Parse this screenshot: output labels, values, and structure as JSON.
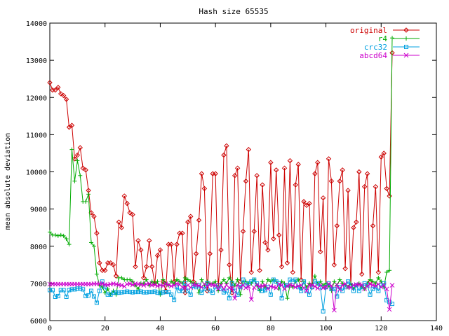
{
  "chart_data": {
    "type": "line",
    "title": "Hash size 65535",
    "xlabel": "",
    "ylabel": "mean absolute deviation",
    "xlim": [
      0,
      140
    ],
    "ylim": [
      6000,
      14000
    ],
    "xticks": [
      0,
      20,
      40,
      60,
      80,
      100,
      120,
      140
    ],
    "yticks": [
      6000,
      7000,
      8000,
      9000,
      10000,
      11000,
      12000,
      13000,
      14000
    ],
    "legend_position": "top-right",
    "series": [
      {
        "name": "original",
        "color": "#cc0000",
        "marker": "diamond",
        "x": [
          0,
          1,
          2,
          3,
          4,
          5,
          6,
          7,
          8,
          9,
          10,
          11,
          12,
          13,
          14,
          15,
          16,
          17,
          18,
          19,
          20,
          21,
          22,
          23,
          24,
          25,
          26,
          27,
          28,
          29,
          30,
          31,
          32,
          33,
          34,
          35,
          36,
          37,
          38,
          39,
          40,
          41,
          42,
          43,
          44,
          45,
          46,
          47,
          48,
          49,
          50,
          51,
          52,
          53,
          54,
          55,
          56,
          57,
          58,
          59,
          60,
          61,
          62,
          63,
          64,
          65,
          66,
          67,
          68,
          69,
          70,
          71,
          72,
          73,
          74,
          75,
          76,
          77,
          78,
          79,
          80,
          81,
          82,
          83,
          84,
          85,
          86,
          87,
          88,
          89,
          90,
          91,
          92,
          93,
          94,
          95,
          96,
          97,
          98,
          99,
          100,
          101,
          102,
          103,
          104,
          105,
          106,
          107,
          108,
          109,
          110,
          111,
          112,
          113,
          114,
          115,
          116,
          117,
          118,
          119,
          120,
          121,
          122,
          123,
          124
        ],
        "y": [
          12400,
          12200,
          12200,
          12270,
          12100,
          12050,
          11950,
          11200,
          11250,
          10350,
          10450,
          10650,
          10100,
          10050,
          9500,
          8900,
          8800,
          8350,
          7550,
          7350,
          7350,
          7550,
          7550,
          7500,
          7200,
          8650,
          8500,
          9350,
          9150,
          8900,
          8850,
          7450,
          8150,
          7900,
          7150,
          7450,
          8150,
          7450,
          7000,
          7750,
          7900,
          7050,
          6800,
          8050,
          8050,
          7050,
          8050,
          8350,
          8350,
          6750,
          8650,
          8800,
          7050,
          7800,
          8700,
          9950,
          9550,
          6800,
          7800,
          9950,
          9950,
          6900,
          7900,
          10450,
          10700,
          7500,
          6750,
          9900,
          10100,
          7050,
          8400,
          9750,
          10600,
          7300,
          8400,
          9900,
          7350,
          9650,
          8100,
          7900,
          10250,
          8200,
          10050,
          8300,
          7450,
          10100,
          7550,
          10300,
          7300,
          9650,
          10200,
          7100,
          9200,
          9100,
          9150,
          6900,
          9950,
          10250,
          7850,
          9300,
          6900,
          10350,
          9750,
          7500,
          8550,
          9750,
          10050,
          7400,
          9500,
          6950,
          8500,
          8650,
          10000,
          7250,
          9600,
          9950,
          7050,
          8550,
          9600,
          7300,
          10400,
          10500,
          9550,
          9350,
          13200
        ]
      },
      {
        "name": "r4",
        "color": "#00aa00",
        "marker": "plus",
        "x": [
          0,
          1,
          2,
          3,
          4,
          5,
          6,
          7,
          8,
          9,
          10,
          11,
          12,
          13,
          14,
          15,
          16,
          17,
          18,
          19,
          20,
          21,
          22,
          23,
          24,
          25,
          26,
          27,
          28,
          29,
          30,
          31,
          32,
          33,
          34,
          35,
          36,
          37,
          38,
          39,
          40,
          41,
          42,
          43,
          44,
          45,
          46,
          47,
          48,
          49,
          50,
          51,
          52,
          53,
          54,
          55,
          56,
          57,
          58,
          59,
          60,
          61,
          62,
          63,
          64,
          65,
          66,
          67,
          68,
          69,
          70,
          71,
          72,
          73,
          74,
          75,
          76,
          77,
          78,
          79,
          80,
          81,
          82,
          83,
          84,
          85,
          86,
          87,
          88,
          89,
          90,
          91,
          92,
          93,
          94,
          95,
          96,
          97,
          98,
          99,
          100,
          101,
          102,
          103,
          104,
          105,
          106,
          107,
          108,
          109,
          110,
          111,
          112,
          113,
          114,
          115,
          116,
          117,
          118,
          119,
          120,
          121,
          122,
          123,
          124
        ],
        "y": [
          8380,
          8300,
          8300,
          8280,
          8300,
          8280,
          8200,
          8050,
          10600,
          9750,
          10300,
          9900,
          9200,
          9200,
          9400,
          8100,
          8000,
          7250,
          6950,
          6900,
          6750,
          6850,
          6700,
          6800,
          6700,
          7150,
          7150,
          7100,
          7100,
          7100,
          7050,
          6950,
          6850,
          7000,
          7000,
          7100,
          6950,
          7050,
          7000,
          7050,
          6700,
          7100,
          7000,
          6950,
          7050,
          7000,
          7100,
          7050,
          7000,
          7150,
          7100,
          7050,
          7000,
          7000,
          6750,
          7100,
          6950,
          7050,
          7000,
          7000,
          7050,
          6800,
          7000,
          7100,
          7000,
          7150,
          7050,
          6950,
          7100,
          6700,
          7050,
          7050,
          7000,
          7000,
          7100,
          6950,
          6800,
          7050,
          6900,
          7100,
          7050,
          7100,
          7050,
          6850,
          7050,
          7000,
          6600,
          6950,
          6900,
          7050,
          7100,
          6850,
          7050,
          6900,
          7000,
          6950,
          7200,
          7000,
          7050,
          6950,
          7000,
          6950,
          6800,
          7050,
          6950,
          7100,
          7000,
          6950,
          6900,
          7000,
          6850,
          6950,
          7000,
          6900,
          6850,
          7000,
          7100,
          7050,
          7000,
          7150,
          7050,
          6900,
          7300,
          7350,
          13600
        ]
      },
      {
        "name": "crc32",
        "color": "#00a0e0",
        "marker": "square",
        "x": [
          0,
          1,
          2,
          3,
          4,
          5,
          6,
          7,
          8,
          9,
          10,
          11,
          12,
          13,
          14,
          15,
          16,
          17,
          18,
          19,
          20,
          21,
          22,
          23,
          24,
          25,
          26,
          27,
          28,
          29,
          30,
          31,
          32,
          33,
          34,
          35,
          36,
          37,
          38,
          39,
          40,
          41,
          42,
          43,
          44,
          45,
          46,
          47,
          48,
          49,
          50,
          51,
          52,
          53,
          54,
          55,
          56,
          57,
          58,
          59,
          60,
          61,
          62,
          63,
          64,
          65,
          66,
          67,
          68,
          69,
          70,
          71,
          72,
          73,
          74,
          75,
          76,
          77,
          78,
          79,
          80,
          81,
          82,
          83,
          84,
          85,
          86,
          87,
          88,
          89,
          90,
          91,
          92,
          93,
          94,
          95,
          96,
          97,
          98,
          99,
          100,
          101,
          102,
          103,
          104,
          105,
          106,
          107,
          108,
          109,
          110,
          111,
          112,
          113,
          114,
          115,
          116,
          117,
          118,
          119,
          120,
          121,
          122,
          123,
          124
        ],
        "y": [
          6820,
          6820,
          6640,
          6660,
          6820,
          6820,
          6640,
          6820,
          6840,
          6840,
          6860,
          6860,
          6840,
          6660,
          6680,
          6800,
          6650,
          6480,
          6800,
          7050,
          6900,
          6700,
          6700,
          6750,
          6760,
          6750,
          6760,
          6770,
          6780,
          6770,
          6760,
          6770,
          6770,
          6780,
          6760,
          6760,
          6770,
          6770,
          6780,
          6750,
          6740,
          6760,
          6770,
          6770,
          6700,
          6560,
          6900,
          6800,
          6800,
          7000,
          6800,
          6700,
          6940,
          6900,
          6950,
          6750,
          6850,
          7000,
          6800,
          6750,
          6900,
          6940,
          6860,
          6760,
          6800,
          6600,
          7000,
          6800,
          6700,
          6900,
          7100,
          6950,
          7000,
          7050,
          7100,
          7000,
          6860,
          6800,
          6820,
          6900,
          6700,
          7100,
          7050,
          7000,
          6600,
          6950,
          6950,
          7100,
          7050,
          7100,
          6900,
          6800,
          7050,
          6800,
          6700,
          6900,
          7050,
          7000,
          6900,
          6250,
          6900,
          7000,
          6850,
          6850,
          6650,
          6900,
          6800,
          6900,
          7050,
          6950,
          6800,
          6950,
          6800,
          6900,
          7000,
          6950,
          6700,
          6850,
          6900,
          6800,
          6950,
          7000,
          6550,
          6500,
          6450
        ]
      },
      {
        "name": "abcd64",
        "color": "#cc00cc",
        "marker": "cross",
        "x": [
          0,
          1,
          2,
          3,
          4,
          5,
          6,
          7,
          8,
          9,
          10,
          11,
          12,
          13,
          14,
          15,
          16,
          17,
          18,
          19,
          20,
          21,
          22,
          23,
          24,
          25,
          26,
          27,
          28,
          29,
          30,
          31,
          32,
          33,
          34,
          35,
          36,
          37,
          38,
          39,
          40,
          41,
          42,
          43,
          44,
          45,
          46,
          47,
          48,
          49,
          50,
          51,
          52,
          53,
          54,
          55,
          56,
          57,
          58,
          59,
          60,
          61,
          62,
          63,
          64,
          65,
          66,
          67,
          68,
          69,
          70,
          71,
          72,
          73,
          74,
          75,
          76,
          77,
          78,
          79,
          80,
          81,
          82,
          83,
          84,
          85,
          86,
          87,
          88,
          89,
          90,
          91,
          92,
          93,
          94,
          95,
          96,
          97,
          98,
          99,
          100,
          101,
          102,
          103,
          104,
          105,
          106,
          107,
          108,
          109,
          110,
          111,
          112,
          113,
          114,
          115,
          116,
          117,
          118,
          119,
          120,
          121,
          122,
          123,
          124
        ],
        "y": [
          6980,
          6980,
          6980,
          6980,
          6980,
          6980,
          6980,
          6980,
          6980,
          6980,
          6980,
          6980,
          6980,
          6980,
          6980,
          6980,
          6990,
          6990,
          6990,
          6990,
          6970,
          6960,
          6980,
          6990,
          6980,
          6960,
          6950,
          6920,
          6980,
          6990,
          6960,
          6990,
          6980,
          6970,
          6950,
          6980,
          6990,
          6950,
          6970,
          6930,
          6950,
          6940,
          6990,
          6960,
          6930,
          6950,
          6990,
          6970,
          6900,
          6880,
          6950,
          6890,
          6970,
          6960,
          6940,
          6900,
          6980,
          6920,
          6970,
          6960,
          6950,
          6850,
          6950,
          6850,
          6960,
          6880,
          6870,
          6600,
          6960,
          6900,
          6950,
          6880,
          6920,
          6570,
          6890,
          6960,
          6920,
          6930,
          6950,
          6860,
          6920,
          6900,
          6880,
          6980,
          6950,
          6850,
          6930,
          6960,
          6940,
          6900,
          6930,
          6950,
          6880,
          6800,
          6950,
          6960,
          6920,
          6870,
          6950,
          6880,
          6900,
          6990,
          6940,
          6280,
          6960,
          6840,
          6950,
          6990,
          6900,
          6890,
          6950,
          6970,
          6970,
          6960,
          6850,
          6930,
          6980,
          6950,
          6930,
          6980,
          6900,
          6950,
          6850,
          6300,
          6950
        ]
      }
    ]
  }
}
